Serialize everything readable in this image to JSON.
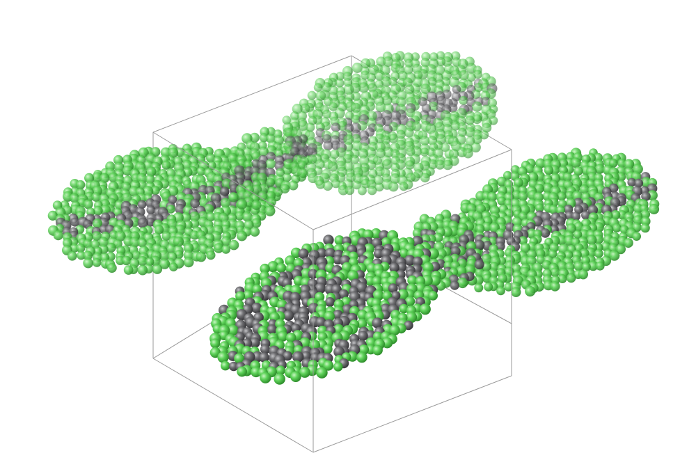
{
  "scene": {
    "background_color": "#ffffff",
    "box_line_color": "#8a8a8a",
    "particle_types": [
      {
        "role": "type-a",
        "color": "#5fd35a",
        "highlight": "#b9f0b2",
        "shadow": "#2f8f2c"
      },
      {
        "role": "type-b",
        "color": "#6f6f72",
        "highlight": "#b8b8bb",
        "shadow": "#3a3a3d"
      }
    ],
    "clusters": [
      {
        "name": "upper-left-lobe",
        "depth": "back",
        "faded": true
      },
      {
        "name": "upper-right-lobe",
        "depth": "back",
        "faded": true
      },
      {
        "name": "right-lobe",
        "depth": "mid",
        "faded": false
      },
      {
        "name": "front-lamellar-lobe",
        "depth": "front",
        "faded": false
      }
    ]
  }
}
